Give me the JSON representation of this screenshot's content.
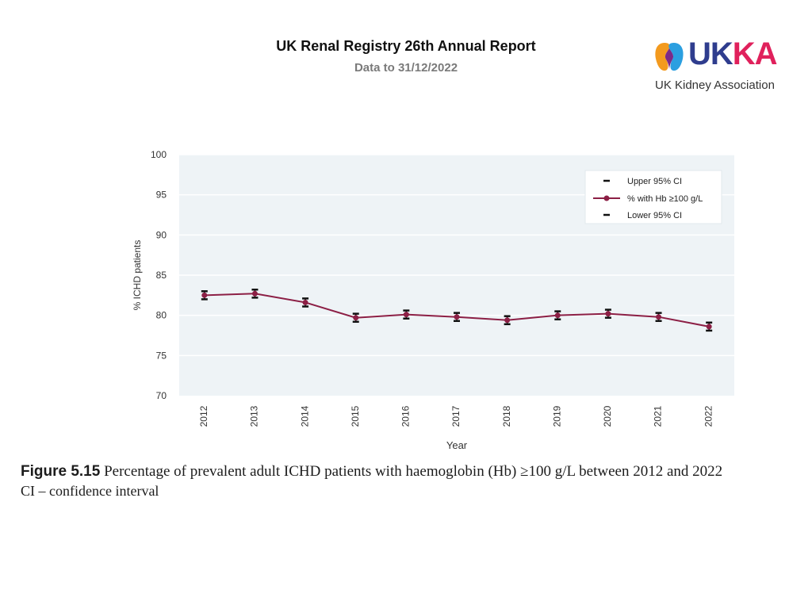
{
  "header": {
    "title": "UK Renal Registry 26th Annual Report",
    "subtitle": "Data to 31/12/2022"
  },
  "logo": {
    "word_left": "UK",
    "word_right": "KA",
    "tagline": "UK Kidney Association",
    "colors": {
      "navy": "#2f3d8e",
      "pink": "#e0215c",
      "orange": "#f39a1e",
      "blue": "#2b9fe0"
    }
  },
  "caption": {
    "figure_label": "Figure 5.15",
    "text": "Percentage of prevalent adult ICHD patients with haemoglobin (Hb) ≥100 g/L between 2012 and 2022",
    "note": "CI – confidence interval"
  },
  "chart_data": {
    "type": "line",
    "title": "",
    "xlabel": "Year",
    "ylabel": "% ICHD patients",
    "ylim": [
      70,
      100
    ],
    "yticks": [
      70,
      75,
      80,
      85,
      90,
      95,
      100
    ],
    "grid": true,
    "legend_position": "top-right",
    "categories": [
      "2012",
      "2013",
      "2014",
      "2015",
      "2016",
      "2017",
      "2018",
      "2019",
      "2020",
      "2021",
      "2022"
    ],
    "series": [
      {
        "name": "Upper 95% CI",
        "values": [
          83.0,
          83.2,
          82.1,
          80.2,
          80.6,
          80.3,
          79.9,
          80.5,
          80.7,
          80.3,
          79.1
        ]
      },
      {
        "name": "% with Hb ≥100 g/L",
        "values": [
          82.5,
          82.7,
          81.6,
          79.7,
          80.1,
          79.8,
          79.4,
          80.0,
          80.2,
          79.8,
          78.6
        ]
      },
      {
        "name": "Lower 95% CI",
        "values": [
          82.0,
          82.2,
          81.1,
          79.2,
          79.6,
          79.3,
          78.9,
          79.5,
          79.7,
          79.3,
          78.1
        ]
      }
    ],
    "colors": {
      "line": "#8c1f45",
      "ci": "#111111",
      "plot_bg": "#eef3f6",
      "grid": "#ffffff"
    }
  }
}
